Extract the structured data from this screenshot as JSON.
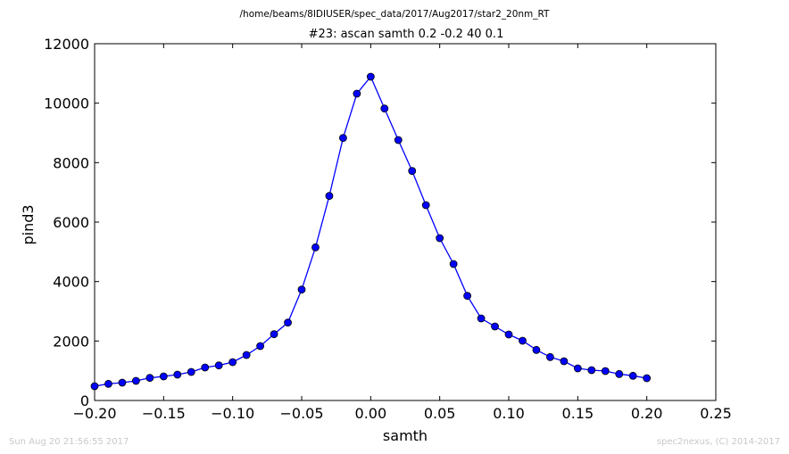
{
  "header": {
    "suptitle": "/home/beams/8IDIUSER/spec_data/2017/Aug2017/star2_20nm_RT",
    "title": "#23: ascan  samth 0.2 -0.2  40 0.1"
  },
  "footer": {
    "timestamp": "Sun Aug 20 21:56:55 2017",
    "credit": "spec2nexus, (C) 2014-2017"
  },
  "chart_data": {
    "type": "line",
    "xlabel": "samth",
    "ylabel": "pind3",
    "xlim": [
      -0.2,
      0.25
    ],
    "ylim": [
      0,
      12000
    ],
    "xticks": [
      "−0.20",
      "−0.15",
      "−0.10",
      "−0.05",
      "0.00",
      "0.05",
      "0.10",
      "0.15",
      "0.20",
      "0.25"
    ],
    "yticks": [
      "0",
      "2000",
      "4000",
      "6000",
      "8000",
      "10000",
      "12000"
    ],
    "grid": false,
    "series": [
      {
        "color": "#0000ff",
        "marker": "circle",
        "x": [
          -0.2,
          -0.19,
          -0.18,
          -0.17,
          -0.16,
          -0.15,
          -0.14,
          -0.13,
          -0.12,
          -0.11,
          -0.1,
          -0.09,
          -0.08,
          -0.07,
          -0.06,
          -0.05,
          -0.04,
          -0.03,
          -0.02,
          -0.01,
          0.0,
          0.01,
          0.02,
          0.03,
          0.04,
          0.05,
          0.06,
          0.07,
          0.08,
          0.09,
          0.1,
          0.11,
          0.12,
          0.13,
          0.14,
          0.15,
          0.16,
          0.17,
          0.18,
          0.19,
          0.2
        ],
        "y": [
          480,
          560,
          600,
          660,
          760,
          810,
          870,
          960,
          1110,
          1180,
          1290,
          1530,
          1830,
          2230,
          2620,
          3730,
          5150,
          6880,
          8830,
          10320,
          10890,
          9820,
          8760,
          7720,
          6570,
          5460,
          4590,
          3520,
          2760,
          2490,
          2220,
          2010,
          1700,
          1460,
          1320,
          1080,
          1020,
          990,
          890,
          830,
          750
        ]
      }
    ]
  }
}
